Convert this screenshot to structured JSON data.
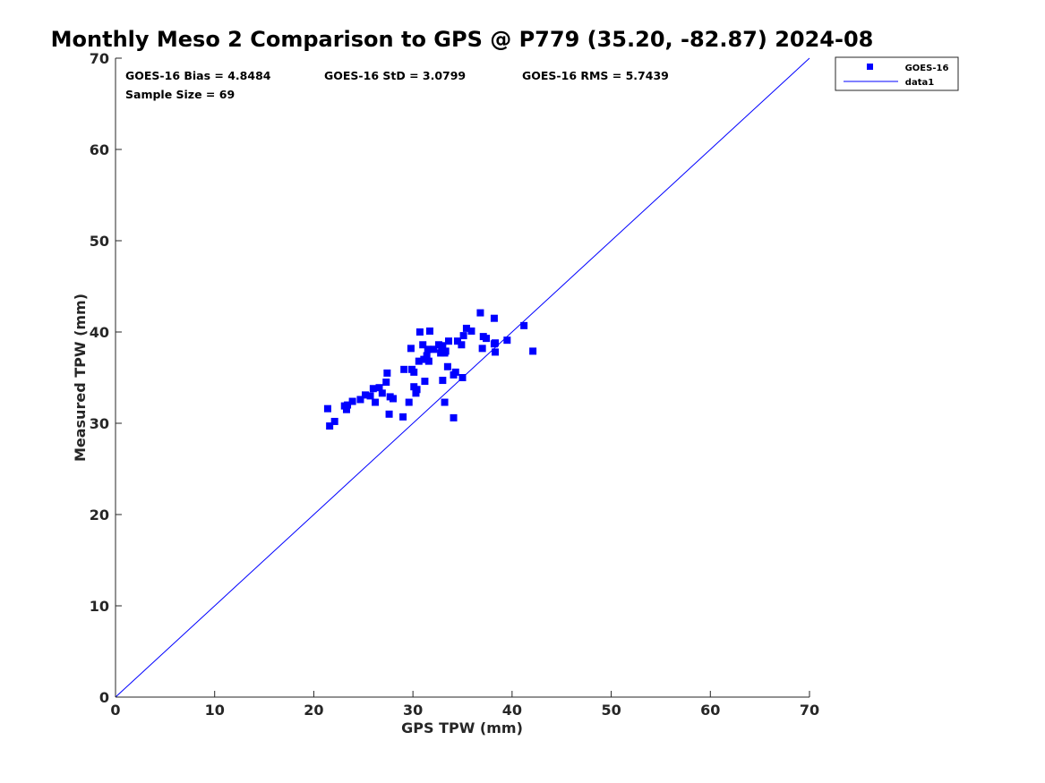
{
  "chart_data": {
    "type": "scatter",
    "title": "Monthly Meso 2 Comparison to GPS @ P779 (35.20, -82.87) 2024-08",
    "xlabel": "GPS TPW (mm)",
    "ylabel": "Measured TPW (mm)",
    "xlim": [
      0,
      70
    ],
    "ylim": [
      0,
      70
    ],
    "xticks": [
      "0",
      "10",
      "20",
      "30",
      "40",
      "50",
      "60",
      "70"
    ],
    "yticks": [
      "0",
      "10",
      "20",
      "30",
      "40",
      "50",
      "60",
      "70"
    ],
    "grid": false,
    "legend_position": "top-right",
    "colors": {
      "series": "#0000ff",
      "axes": "#262626"
    },
    "annotations": {
      "bias": "GOES-16 Bias = 4.8484",
      "std": "GOES-16 StD = 3.0799",
      "rms": "GOES-16 RMS = 5.7439",
      "sample": "Sample Size = 69"
    },
    "series": [
      {
        "name": "GOES-16",
        "type": "scatter",
        "marker": "square",
        "x": [
          21.4,
          21.6,
          22.1,
          23.1,
          23.3,
          23.4,
          23.9,
          24.7,
          25.2,
          25.7,
          26.0,
          26.2,
          26.6,
          26.9,
          27.3,
          27.4,
          27.6,
          27.7,
          28.0,
          28.0,
          29.0,
          29.1,
          29.6,
          29.8,
          29.9,
          30.1,
          30.1,
          30.3,
          30.4,
          30.6,
          30.7,
          31.0,
          31.1,
          31.2,
          31.4,
          31.5,
          31.6,
          31.7,
          32.1,
          32.6,
          32.8,
          32.9,
          33.0,
          33.0,
          33.2,
          33.2,
          33.3,
          33.5,
          33.6,
          34.1,
          34.1,
          34.3,
          34.5,
          34.9,
          35.0,
          35.1,
          35.4,
          35.9,
          36.8,
          37.0,
          37.1,
          37.4,
          38.2,
          38.2,
          38.3,
          39.5,
          41.2,
          42.1,
          38.3
        ],
        "y": [
          31.6,
          29.7,
          30.2,
          31.9,
          31.5,
          32.0,
          32.4,
          32.6,
          33.1,
          33.0,
          33.8,
          32.3,
          33.9,
          33.3,
          34.5,
          35.5,
          31.0,
          32.9,
          32.7,
          32.7,
          30.7,
          35.9,
          32.3,
          38.2,
          35.9,
          35.6,
          34.0,
          33.3,
          33.7,
          36.8,
          40.0,
          38.6,
          37.0,
          34.6,
          37.4,
          38.1,
          36.8,
          40.1,
          38.1,
          38.6,
          37.7,
          38.4,
          38.5,
          34.7,
          32.3,
          37.7,
          37.9,
          36.2,
          39.0,
          35.3,
          30.6,
          35.6,
          39.0,
          38.6,
          35.0,
          39.6,
          40.4,
          40.1,
          42.1,
          38.2,
          39.5,
          39.3,
          41.5,
          38.7,
          37.8,
          39.1,
          40.7,
          37.9,
          38.8
        ]
      },
      {
        "name": "data1",
        "type": "line",
        "x": [
          0,
          70
        ],
        "y": [
          0,
          70
        ]
      }
    ]
  }
}
